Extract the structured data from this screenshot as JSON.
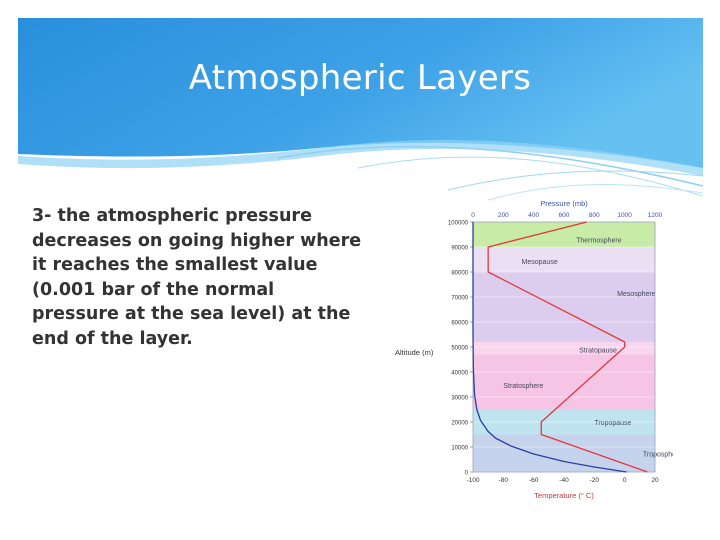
{
  "slide": {
    "title": "Atmospheric Layers",
    "body_text": "3- the atmospheric pressure decreases on going higher where it reaches the smallest value (0.001 bar of the normal pressure at the sea level) at the end of the layer."
  },
  "chart_data": {
    "type": "line",
    "top_axis_label": "Pressure (mb)",
    "top_ticks": [
      "0",
      "200",
      "400",
      "600",
      "800",
      "1000",
      "1200"
    ],
    "bottom_axis_label": "Temperature (° C)",
    "bottom_ticks": [
      "-100",
      "-80",
      "-60",
      "-40",
      "-20",
      "0",
      "20"
    ],
    "left_axis_label": "Altitude (m)",
    "left_ticks": [
      "100000",
      "90000",
      "80000",
      "70000",
      "60000",
      "50000",
      "40000",
      "30000",
      "20000",
      "10000",
      "0"
    ],
    "xlim_temperature": [
      -100,
      20
    ],
    "xlim_pressure": [
      0,
      1200
    ],
    "ylim_altitude": [
      0,
      100000
    ],
    "layers": [
      {
        "name": "Troposphere",
        "bottom": 0,
        "top": 15000,
        "color": "#c6d3ec"
      },
      {
        "name": "Tropopause",
        "bottom": 15000,
        "top": 25000,
        "color": "#bfe4ef"
      },
      {
        "name": "Stratosphere",
        "bottom": 25000,
        "top": 47000,
        "color": "#f6c5e6"
      },
      {
        "name": "Stratopause",
        "bottom": 47000,
        "top": 52000,
        "color": "#f9d6ee"
      },
      {
        "name": "Mesosphere",
        "bottom": 52000,
        "top": 80000,
        "color": "#dccdef"
      },
      {
        "name": "Mesopause",
        "bottom": 80000,
        "top": 90000,
        "color": "#eadff3"
      },
      {
        "name": "Thermosphere",
        "bottom": 90000,
        "top": 100000,
        "color": "#c9eba8"
      }
    ],
    "series": [
      {
        "name": "Temperature",
        "color": "#e5373a",
        "points": [
          [
            15,
            0
          ],
          [
            -55,
            15000
          ],
          [
            -55,
            20000
          ],
          [
            0,
            50000
          ],
          [
            0,
            52000
          ],
          [
            -90,
            80000
          ],
          [
            -90,
            90000
          ],
          [
            -25,
            100000
          ]
        ]
      },
      {
        "name": "Pressure",
        "color": "#2a3fa0",
        "points": [
          [
            1013,
            0
          ],
          [
            800,
            2000
          ],
          [
            600,
            4200
          ],
          [
            400,
            7200
          ],
          [
            250,
            10400
          ],
          [
            150,
            13500
          ],
          [
            100,
            16200
          ],
          [
            50,
            20600
          ],
          [
            25,
            25000
          ],
          [
            10,
            31000
          ],
          [
            2,
            42000
          ],
          [
            0,
            55000
          ],
          [
            0,
            100000
          ]
        ]
      }
    ]
  }
}
